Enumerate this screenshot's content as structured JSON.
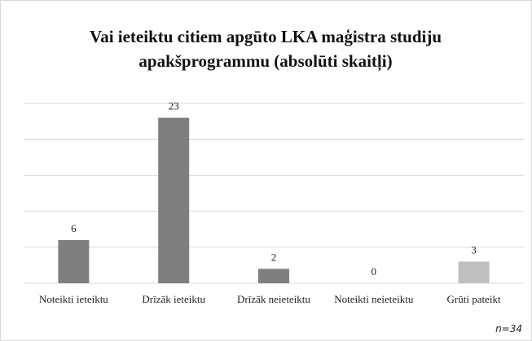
{
  "chart_data": {
    "type": "bar",
    "title": "Vai ieteiktu citiem apgūto LKA maģistra studiju apakšprogrammu (absolūti skaitļi)",
    "categories": [
      "Noteikti ieteiktu",
      "Drīzāk ieteiktu",
      "Drīzāk neieteiktu",
      "Noteikti neieteiktu",
      "Grūti pateikt"
    ],
    "values": [
      6,
      23,
      2,
      0,
      3
    ],
    "colors": [
      "#7f7f7f",
      "#7f7f7f",
      "#7f7f7f",
      "#7f7f7f",
      "#bfbfbf"
    ],
    "ylim": [
      0,
      25
    ],
    "yticks": [
      0,
      5,
      10,
      15,
      20,
      25
    ],
    "grid": true,
    "note": "n=34"
  }
}
